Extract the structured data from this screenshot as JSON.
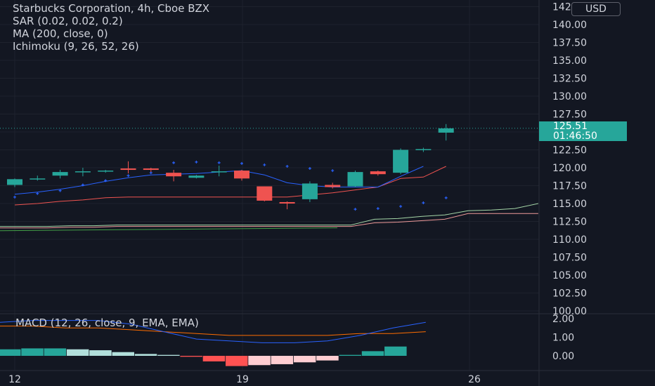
{
  "legend": {
    "title": "Starbucks Corporation, 4h, Cboe BZX",
    "sar": "SAR (0.02, 0.02, 0.2)",
    "ma": "MA (200, close, 0)",
    "ichimoku": "Ichimoku (9, 26, 52, 26)"
  },
  "macd_legend": "MACD (12, 26, close, 9, EMA, EMA)",
  "currency": "USD",
  "price_tag": {
    "price": "125.51",
    "countdown": "01:46:50"
  },
  "colors": {
    "background": "#131722",
    "grid": "#1e222d",
    "up": "#26a69a",
    "down": "#ef5350",
    "macd_line": "#2962ff",
    "signal_line": "#ff6d00",
    "sar": "#2962ff",
    "ma": "#2962ff",
    "conversion": "#ef5350",
    "lagging": "#43a047",
    "span_a": "#a5d6a7",
    "span_b": "#ef9a9a"
  },
  "chart_data": {
    "type": "candlestick",
    "y_axis_ticks": [
      "142.50",
      "140.00",
      "137.50",
      "135.00",
      "132.50",
      "130.00",
      "127.50",
      "125.00",
      "122.50",
      "120.00",
      "117.50",
      "115.00",
      "112.50",
      "110.00",
      "107.50",
      "105.00",
      "102.50",
      "100.00"
    ],
    "x_axis_ticks": [
      "12",
      "19",
      "26"
    ],
    "candles": [
      {
        "o": 117.6,
        "h": 118.5,
        "l": 117.3,
        "c": 118.4
      },
      {
        "o": 118.5,
        "h": 118.9,
        "l": 118.2,
        "c": 118.5
      },
      {
        "o": 118.9,
        "h": 119.7,
        "l": 118.5,
        "c": 119.4
      },
      {
        "o": 119.4,
        "h": 120.0,
        "l": 118.8,
        "c": 119.5
      },
      {
        "o": 119.5,
        "h": 119.7,
        "l": 119.3,
        "c": 119.6
      },
      {
        "o": 119.9,
        "h": 120.9,
        "l": 119.2,
        "c": 119.7
      },
      {
        "o": 119.9,
        "h": 120.0,
        "l": 119.4,
        "c": 119.7
      },
      {
        "o": 119.3,
        "h": 119.7,
        "l": 118.1,
        "c": 118.8
      },
      {
        "o": 118.6,
        "h": 119.0,
        "l": 118.5,
        "c": 118.9
      },
      {
        "o": 119.5,
        "h": 120.3,
        "l": 118.8,
        "c": 119.5
      },
      {
        "o": 119.6,
        "h": 119.7,
        "l": 118.2,
        "c": 118.5
      },
      {
        "o": 117.4,
        "h": 117.4,
        "l": 115.3,
        "c": 115.4
      },
      {
        "o": 115.2,
        "h": 115.3,
        "l": 114.2,
        "c": 115.0
      },
      {
        "o": 115.6,
        "h": 118.1,
        "l": 115.2,
        "c": 117.8
      },
      {
        "o": 117.6,
        "h": 117.9,
        "l": 117.1,
        "c": 117.3
      },
      {
        "o": 117.4,
        "h": 119.6,
        "l": 117.3,
        "c": 119.4
      },
      {
        "o": 119.5,
        "h": 119.6,
        "l": 118.9,
        "c": 119.1
      },
      {
        "o": 119.3,
        "h": 122.7,
        "l": 119.1,
        "c": 122.5
      },
      {
        "o": 122.5,
        "h": 122.8,
        "l": 122.2,
        "c": 122.6
      },
      {
        "o": 124.9,
        "h": 126.1,
        "l": 123.8,
        "c": 125.5
      }
    ],
    "sar_points": [
      115.9,
      116.4,
      116.8,
      117.6,
      118.2,
      118.9,
      119.3,
      120.7,
      120.8,
      120.7,
      120.6,
      120.4,
      120.2,
      119.9,
      119.6,
      114.2,
      114.3,
      114.6,
      115.1,
      115.8
    ],
    "ma_line": [
      116.3,
      116.6,
      117.0,
      117.5,
      118.1,
      118.6,
      119.0,
      119.1,
      119.2,
      119.4,
      119.6,
      119.0,
      117.9,
      117.5,
      117.3,
      117.3,
      117.3,
      118.8,
      120.2
    ],
    "conversion_line": [
      114.8,
      115.0,
      115.3,
      115.5,
      115.8,
      115.9,
      115.9,
      115.9,
      115.9,
      115.9,
      115.9,
      115.9,
      115.9,
      116.2,
      116.5,
      116.9,
      117.3,
      118.5,
      118.7,
      120.2
    ],
    "cloud_span_a": [
      111.8,
      111.8,
      111.8,
      111.9,
      111.9,
      112.0,
      112.0,
      112.0,
      112.0,
      112.0,
      112.0,
      112.0,
      112.0,
      112.0,
      112.0,
      112.0,
      112.8,
      112.9,
      113.2,
      113.4,
      114.0,
      114.1,
      114.3,
      115.0
    ],
    "cloud_span_b": [
      111.6,
      111.6,
      111.6,
      111.7,
      111.7,
      111.8,
      111.8,
      111.8,
      111.8,
      111.8,
      111.8,
      111.8,
      111.8,
      111.8,
      111.8,
      111.8,
      112.3,
      112.4,
      112.6,
      112.8,
      113.6,
      113.6,
      113.6,
      113.6
    ],
    "macd_axis_ticks": [
      "2.00",
      "1.00",
      "0.00"
    ],
    "macd_line": [
      1.8,
      1.9,
      1.9,
      1.9,
      1.7,
      1.3,
      0.9,
      0.8,
      0.7,
      0.7,
      0.8,
      1.1,
      1.5,
      1.8
    ],
    "signal_line": [
      1.6,
      1.6,
      1.5,
      1.5,
      1.4,
      1.3,
      1.2,
      1.1,
      1.1,
      1.1,
      1.1,
      1.2,
      1.2,
      1.3
    ],
    "macd_histogram": [
      0.35,
      0.4,
      0.4,
      0.35,
      0.3,
      0.2,
      0.1,
      0.05,
      -0.05,
      -0.3,
      -0.55,
      -0.5,
      -0.45,
      -0.35,
      -0.25,
      0.05,
      0.25,
      0.5
    ]
  }
}
